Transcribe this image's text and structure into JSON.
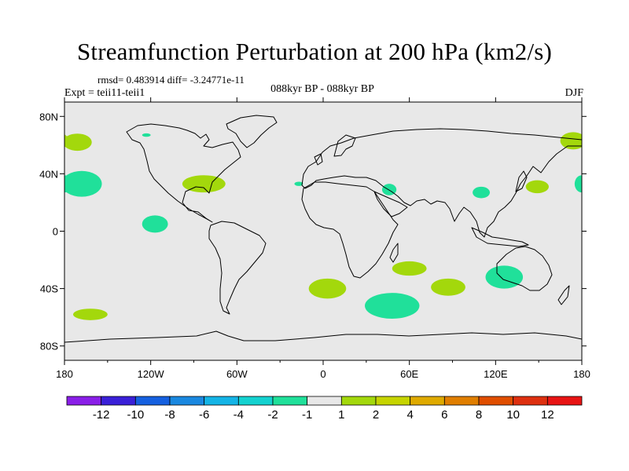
{
  "title": "Streamfunction Perturbation at 200 hPa (km2/s)",
  "stats_text": "rmsd= 0.483914 diff= -3.24771e-11",
  "experiment_text": "Expt = teii11-teii1",
  "period_text": "088kyr BP - 088kyr BP",
  "season_text": "DJF",
  "map": {
    "projection": "cylindrical-equidistant",
    "background_color": "#e8e8e8",
    "lon_range": [
      -180,
      180
    ],
    "lat_range": [
      -90,
      90
    ],
    "x_ticks": [
      {
        "lon": -180,
        "label": "180"
      },
      {
        "lon": -120,
        "label": "120W"
      },
      {
        "lon": -60,
        "label": "60W"
      },
      {
        "lon": 0,
        "label": "0"
      },
      {
        "lon": 60,
        "label": "60E"
      },
      {
        "lon": 120,
        "label": "120E"
      },
      {
        "lon": 180,
        "label": "180"
      }
    ],
    "y_ticks": [
      {
        "lat": 80,
        "label": "80N"
      },
      {
        "lat": 40,
        "label": "40N"
      },
      {
        "lat": 0,
        "label": "0"
      },
      {
        "lat": -40,
        "label": "40S"
      },
      {
        "lat": -80,
        "label": "80S"
      }
    ],
    "anomalies": [
      {
        "lon": -171,
        "lat": 62,
        "rlon": 10,
        "rlat": 6,
        "level": "1 to 2"
      },
      {
        "lon": -123,
        "lat": 67,
        "rlon": 3,
        "rlat": 1.2,
        "level": "-2 to -1"
      },
      {
        "lon": 174,
        "lat": 63,
        "rlon": 9,
        "rlat": 6,
        "level": "1 to 2"
      },
      {
        "lon": -168,
        "lat": 33,
        "rlon": 14,
        "rlat": 9,
        "level": "-2 to -1"
      },
      {
        "lon": -83,
        "lat": 33,
        "rlon": 15,
        "rlat": 6,
        "level": "1 to 2"
      },
      {
        "lon": -17,
        "lat": 33,
        "rlon": 3,
        "rlat": 1.5,
        "level": "-2 to -1"
      },
      {
        "lon": -117,
        "lat": 5,
        "rlon": 9,
        "rlat": 6,
        "level": "-2 to -1"
      },
      {
        "lon": 46,
        "lat": 29,
        "rlon": 5,
        "rlat": 4,
        "level": "-2 to -1"
      },
      {
        "lon": 110,
        "lat": 27,
        "rlon": 6,
        "rlat": 4,
        "level": "-2 to -1"
      },
      {
        "lon": 149,
        "lat": 31,
        "rlon": 8,
        "rlat": 4.5,
        "level": "1 to 2"
      },
      {
        "lon": 180,
        "lat": 33,
        "rlon": 5,
        "rlat": 6,
        "level": "-2 to -1"
      },
      {
        "lon": 60,
        "lat": -26,
        "rlon": 12,
        "rlat": 5,
        "level": "1 to 2"
      },
      {
        "lon": 126,
        "lat": -32,
        "rlon": 13,
        "rlat": 8,
        "level": "-2 to -1"
      },
      {
        "lon": 3,
        "lat": -40,
        "rlon": 13,
        "rlat": 7,
        "level": "1 to 2"
      },
      {
        "lon": 87,
        "lat": -39,
        "rlon": 12,
        "rlat": 6,
        "level": "1 to 2"
      },
      {
        "lon": 48,
        "lat": -52,
        "rlon": 19,
        "rlat": 9,
        "level": "-2 to -1"
      },
      {
        "lon": -162,
        "lat": -58,
        "rlon": 12,
        "rlat": 4,
        "level": "1 to 2"
      }
    ]
  },
  "colorbar": {
    "levels": [
      "-12",
      "-10",
      "-8",
      "-6",
      "-4",
      "-2",
      "-1",
      "1",
      "2",
      "4",
      "6",
      "8",
      "10",
      "12"
    ],
    "colors": [
      "#8a1fe8",
      "#3a20d8",
      "#1560e0",
      "#1a88e0",
      "#14b4e6",
      "#14d2d0",
      "#20e09a",
      "#e8e8e8",
      "#a3d80c",
      "#c6d400",
      "#dfaa00",
      "#e07e00",
      "#e04e00",
      "#de3010",
      "#e81414"
    ]
  }
}
